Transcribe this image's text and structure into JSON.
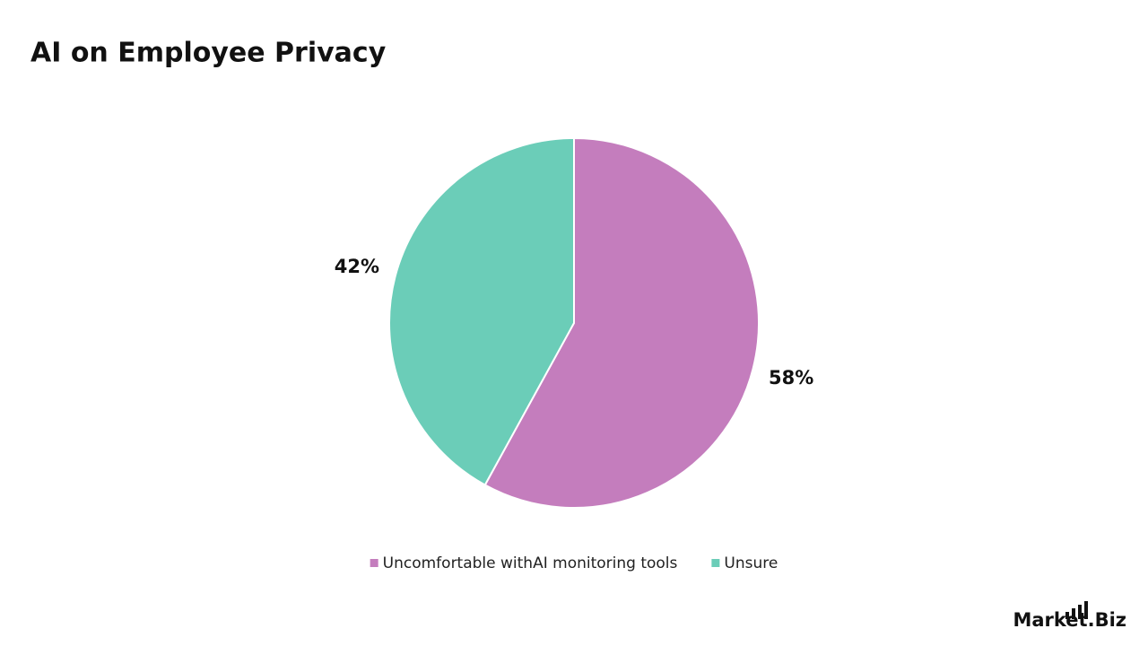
{
  "chart_data": {
    "type": "pie",
    "title": "AI on Employee Privacy",
    "categories": [
      "Uncomfortable withAI monitoring tools",
      "Unsure"
    ],
    "values": [
      58,
      42
    ],
    "value_labels": [
      "58%",
      "42%"
    ],
    "colors": [
      "#c47dbd",
      "#6bcdb8"
    ],
    "legend": "bottom"
  },
  "brand": "Market.Biz"
}
